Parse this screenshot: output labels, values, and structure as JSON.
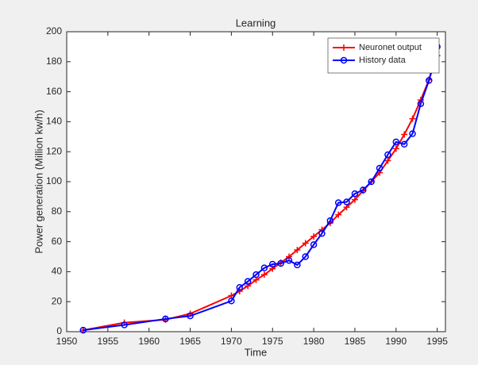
{
  "chart_data": {
    "type": "line",
    "title": "Learning",
    "xlabel": "Time",
    "ylabel": "Power generation (Million kw/h)",
    "x": [
      1952,
      1957,
      1962,
      1965,
      1970,
      1971,
      1972,
      1973,
      1974,
      1975,
      1976,
      1977,
      1978,
      1979,
      1980,
      1981,
      1982,
      1983,
      1984,
      1985,
      1986,
      1987,
      1988,
      1989,
      1990,
      1991,
      1992,
      1993,
      1994,
      1995
    ],
    "series": [
      {
        "name": "Neuronet output",
        "color": "#ff0000",
        "marker": "plus",
        "values": [
          1,
          6,
          8,
          12,
          24,
          27,
          30.5,
          34.5,
          38,
          42,
          46,
          50,
          54.5,
          59,
          63.5,
          68,
          72.5,
          78,
          83,
          88,
          94,
          100,
          106,
          114,
          122,
          131.5,
          142,
          154.5,
          168,
          184
        ]
      },
      {
        "name": "History data",
        "color": "#0000ff",
        "marker": "circle",
        "values": [
          1,
          4.5,
          8.5,
          10.5,
          20.5,
          29.5,
          33.5,
          38,
          42.5,
          45,
          45.5,
          47.5,
          44.5,
          50,
          58,
          65.5,
          74,
          86,
          86.5,
          92,
          94.5,
          100,
          109,
          118,
          126.5,
          125,
          132,
          152,
          167.5,
          190
        ]
      }
    ],
    "xlim": [
      1950,
      1996
    ],
    "xticks": [
      1950,
      1955,
      1960,
      1965,
      1970,
      1975,
      1980,
      1985,
      1990,
      1995
    ],
    "ylim": [
      0,
      200
    ],
    "yticks": [
      0,
      20,
      40,
      60,
      80,
      100,
      120,
      140,
      160,
      180,
      200
    ],
    "legend": "northeast"
  }
}
